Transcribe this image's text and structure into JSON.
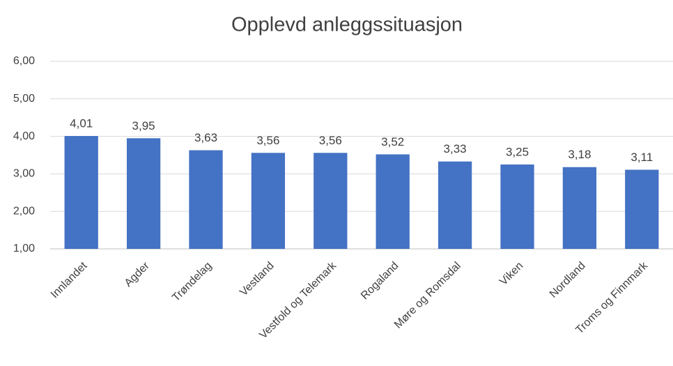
{
  "chart_data": {
    "type": "bar",
    "title": "Opplevd anleggssituasjon",
    "categories": [
      "Innlandet",
      "Agder",
      "Trøndelag",
      "Vestland",
      "Vestfold og Telemark",
      "Rogaland",
      "Møre og Romsdal",
      "Viken",
      "Nordland",
      "Troms og Finnmark"
    ],
    "values": [
      4.01,
      3.95,
      3.63,
      3.56,
      3.56,
      3.52,
      3.33,
      3.25,
      3.18,
      3.11
    ],
    "value_labels": [
      "4,01",
      "3,95",
      "3,63",
      "3,56",
      "3,56",
      "3,52",
      "3,33",
      "3,25",
      "3,18",
      "3,11"
    ],
    "color": "#4472c4",
    "ylim": [
      1,
      6
    ],
    "yticks": [
      {
        "value": 1,
        "label": "1,00"
      },
      {
        "value": 2,
        "label": "2,00"
      },
      {
        "value": 3,
        "label": "3,00"
      },
      {
        "value": 4,
        "label": "4,00"
      },
      {
        "value": 5,
        "label": "5,00"
      },
      {
        "value": 6,
        "label": "6,00"
      }
    ],
    "grid": true
  }
}
